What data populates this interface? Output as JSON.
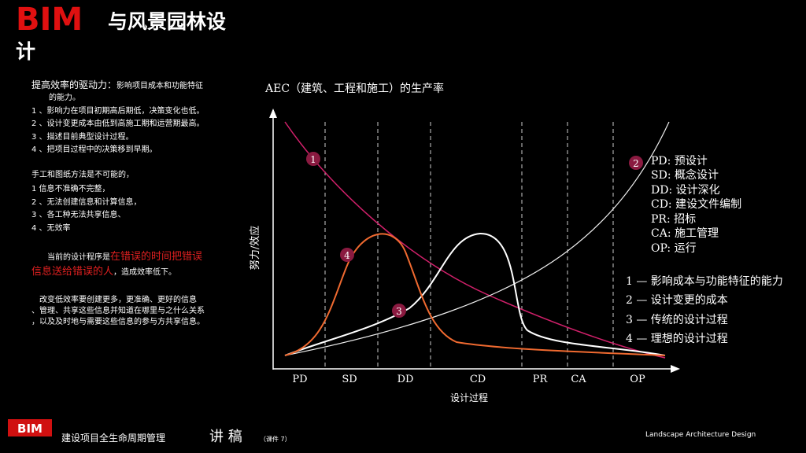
{
  "header": {
    "title_bim": "BIM",
    "title_rest": "与风景园林设",
    "title_line2": "计"
  },
  "left_text": {
    "heading": "提高效率的驱动力：",
    "heading_rest": "影响项目成本和功能特征",
    "heading_cont": "的能力。",
    "drivers": [
      "1 、影响力在项目初期高后期低，决策变化也低。",
      "2 、设计变更成本由低到高施工期和运营期最高。",
      "3 、描述目前典型设计过程。",
      "4 、把项目过程中的决策移到早期。"
    ],
    "manual_title": "手工和图纸方法是不可能的，",
    "manual": [
      "1 信息不准确不完整，",
      "2 、无法创建信息和计算信息，",
      "3 、各工种无法共享信息、",
      "4 、无效率"
    ],
    "current_a": "当前的设计程序是",
    "current_red_a": "在错误的时间把错误",
    "current_red_b": "信息送给错误的人",
    "current_b": "，造成效率低下。",
    "change": [
      "改变低效率要创建更多，更准确、更好的信息",
      "、管理、共享这些信息并知道在哪里与之什么关系",
      "，以及及时地与需要这些信息的参与方共享信息。"
    ]
  },
  "diagram": {
    "title": "AEC（建筑、工程和施工）的生产率",
    "y_label": "努力/效应",
    "x_label": "设计过程",
    "phases": [
      "PD",
      "SD",
      "DD",
      "CD",
      "PR",
      "CA",
      "OP"
    ],
    "markers": [
      "1",
      "2",
      "3",
      "4"
    ],
    "phase_legend": [
      "PD: 预设计",
      "SD: 概念设计",
      "DD: 设计深化",
      "CD: 建设文件编制",
      "PR: 招标",
      "CA: 施工管理",
      "OP: 运行"
    ],
    "curve_legend": [
      "1 — 影响成本与功能特征的能力",
      "2 — 设计变更的成本",
      "3 — 传统的设计过程",
      "4 — 理想的设计过程"
    ]
  },
  "footer": {
    "logo": "BIM",
    "text": "建设项目全生命周期管理",
    "big": "讲 稿",
    "small": "（课件 7）",
    "right": "Landscape Architecture Design"
  }
}
